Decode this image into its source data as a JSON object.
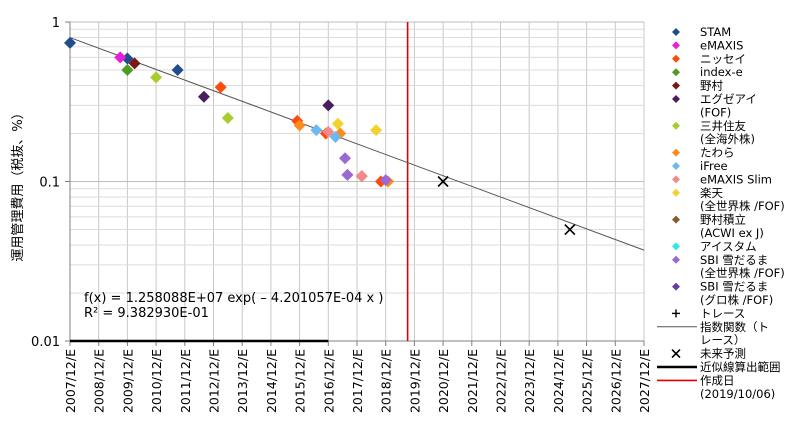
{
  "chart_data": {
    "type": "scatter",
    "ylabel": "運用管理費用（税抜、%）",
    "yscale": "log",
    "ylim": [
      0.01,
      1
    ],
    "yticks": [
      {
        "value": 1,
        "label": "1"
      },
      {
        "value": 0.1,
        "label": "0.1"
      },
      {
        "value": 0.01,
        "label": "0.01"
      }
    ],
    "xlim": [
      "2007/12/E",
      "2027/12/E"
    ],
    "xticks": [
      "2007/12/E",
      "2008/12/E",
      "2009/12/E",
      "2010/12/E",
      "2011/12/E",
      "2012/12/E",
      "2013/12/E",
      "2014/12/E",
      "2015/12/E",
      "2016/12/E",
      "2017/12/E",
      "2018/12/E",
      "2019/12/E",
      "2020/12/E",
      "2021/12/E",
      "2022/12/E",
      "2023/12/E",
      "2024/12/E",
      "2025/12/E",
      "2026/12/E",
      "2027/12/E"
    ],
    "grid": true,
    "legend_position": "right",
    "series": [
      {
        "name": "STAM",
        "color": "#1f4e8c",
        "points": [
          [
            "2008/01/01",
            0.74
          ],
          [
            "2010/01/01",
            0.59
          ],
          [
            "2011/10/01",
            0.5
          ]
        ]
      },
      {
        "name": "eMAXIS",
        "color": "#e81ed8",
        "points": [
          [
            "2009/10/01",
            0.6
          ]
        ]
      },
      {
        "name": "ニッセイ",
        "color": "#ff4a0a",
        "points": [
          [
            "2013/04/01",
            0.39
          ],
          [
            "2015/12/01",
            0.24
          ],
          [
            "2016/12/01",
            0.2
          ],
          [
            "2018/03/01",
            0.108
          ],
          [
            "2018/11/01",
            0.1
          ]
        ]
      },
      {
        "name": "index-e",
        "color": "#4e9a22",
        "points": [
          [
            "2010/01/01",
            0.5
          ]
        ]
      },
      {
        "name": "野村",
        "color": "#7a1717",
        "points": [
          [
            "2010/04/01",
            0.55
          ]
        ]
      },
      {
        "name": "エグゼアイ\n(FOF)",
        "color": "#4a1e5e",
        "points": [
          [
            "2012/09/01",
            0.34
          ],
          [
            "2017/01/01",
            0.3
          ]
        ]
      },
      {
        "name": "三井住友\n(全海外株)",
        "color": "#a8cc2c",
        "points": [
          [
            "2011/01/01",
            0.45
          ],
          [
            "2013/07/01",
            0.25
          ]
        ]
      },
      {
        "name": "たわら",
        "color": "#ff8c1a",
        "points": [
          [
            "2016/01/01",
            0.225
          ],
          [
            "2017/06/01",
            0.2
          ],
          [
            "2019/02/01",
            0.1
          ]
        ]
      },
      {
        "name": "iFree",
        "color": "#6cb8f0",
        "points": [
          [
            "2016/08/01",
            0.21
          ],
          [
            "2017/04/01",
            0.19
          ]
        ]
      },
      {
        "name": "eMAXIS Slim",
        "color": "#f28a8a",
        "points": [
          [
            "2017/01/01",
            0.205
          ],
          [
            "2017/09/01",
            0.11
          ],
          [
            "2018/03/01",
            0.108
          ]
        ]
      },
      {
        "name": "楽天\n(全世界株 /FOF)",
        "color": "#f2d22e",
        "points": [
          [
            "2017/05/01",
            0.23
          ],
          [
            "2018/09/01",
            0.21
          ]
        ]
      },
      {
        "name": "野村積立\n(ACWI ex J)",
        "color": "#8a5a30",
        "points": []
      },
      {
        "name": "アイスタム",
        "color": "#2ee8e8",
        "points": []
      },
      {
        "name": "SBI 雪だるま\n(全世界株 /FOF)",
        "color": "#9a6ad4",
        "points": [
          [
            "2017/08/01",
            0.14
          ],
          [
            "2017/09/01",
            0.11
          ],
          [
            "2019/01/01",
            0.102
          ]
        ]
      },
      {
        "name": "SBI 雪だるま\n(グロ株 /FOF)",
        "color": "#6a3ca8",
        "points": []
      }
    ],
    "trendline": {
      "name": "指数関数（トレース）",
      "type": "exponential",
      "a": 12580880,
      "b": -0.0004201057,
      "x_unit": "Excel date serial",
      "equation": "f(x) = 1.258088E+07 exp( – 4.201057E-04 x )",
      "r_squared": "R² = 9.382930E-01",
      "from": "2007/12/E",
      "to": "2027/12/E"
    },
    "trace_legend_name": "トレース",
    "forecast": {
      "name": "未来予測",
      "points": [
        [
          "2020/12/31",
          0.1
        ],
        [
          "2025/06/01",
          0.05
        ]
      ]
    },
    "fit_range": {
      "name": "近似線算出範囲",
      "from": "2007/12/E",
      "to": "2016/12/E",
      "y": 0.01
    },
    "creation_date": {
      "name": "作成日\n(2019/10/06)",
      "date": "2019/10/06",
      "color": "#e00000"
    }
  }
}
